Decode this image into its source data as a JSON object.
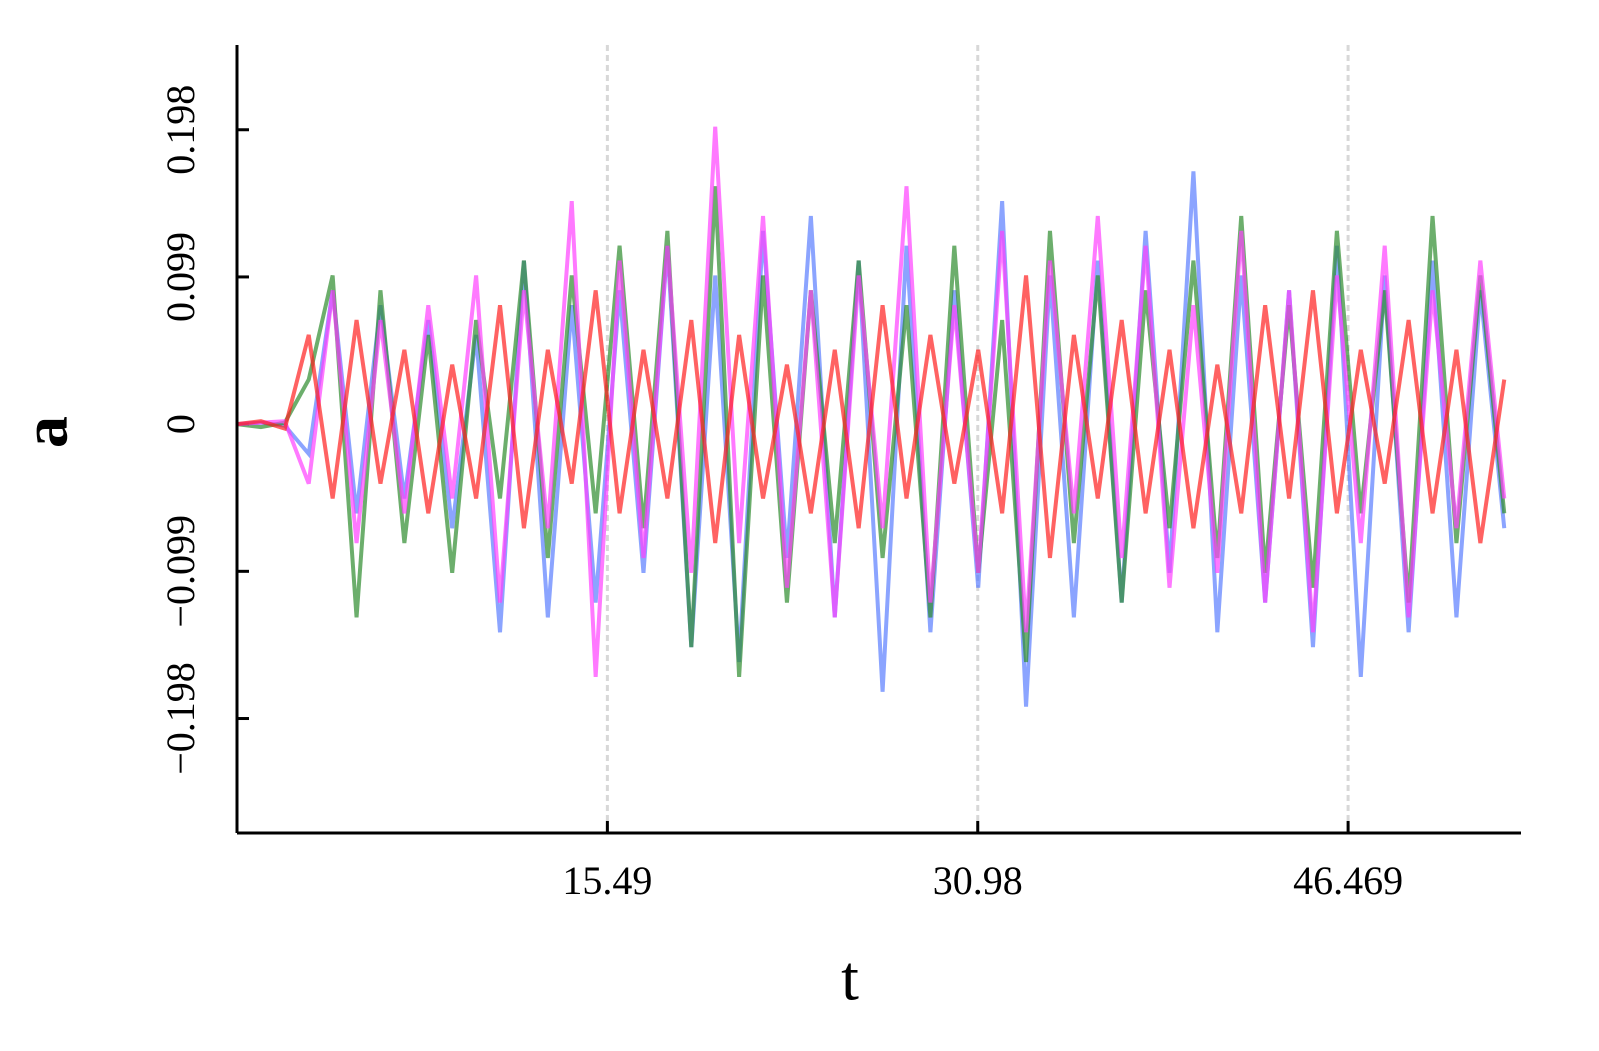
{
  "chart_data": {
    "type": "line",
    "x_label": "t",
    "y_label": "a",
    "x": [
      0,
      1,
      2,
      3,
      4,
      5,
      6,
      7,
      8,
      9,
      10,
      11,
      12,
      13,
      14,
      15,
      16,
      17,
      18,
      19,
      20,
      21,
      22,
      23,
      24,
      25,
      26,
      27,
      28,
      29,
      30,
      31,
      32,
      33,
      34,
      35,
      36,
      37,
      38,
      39,
      40,
      41,
      42,
      43,
      44,
      45,
      46,
      47,
      48,
      49,
      50,
      51,
      52,
      53
    ],
    "series": [
      {
        "color": "#5a7dff",
        "values": [
          0,
          0.001,
          -0.001,
          -0.02,
          0.09,
          -0.06,
          0.08,
          -0.05,
          0.07,
          -0.07,
          0.06,
          -0.14,
          0.11,
          -0.13,
          0.08,
          -0.12,
          0.09,
          -0.1,
          0.12,
          -0.15,
          0.1,
          -0.16,
          0.13,
          -0.09,
          0.14,
          -0.13,
          0.11,
          -0.18,
          0.12,
          -0.14,
          0.09,
          -0.11,
          0.15,
          -0.19,
          0.1,
          -0.13,
          0.11,
          -0.12,
          0.13,
          -0.1,
          0.17,
          -0.14,
          0.1,
          -0.12,
          0.09,
          -0.15,
          0.12,
          -0.17,
          0.1,
          -0.14,
          0.11,
          -0.13,
          0.09,
          -0.07
        ]
      },
      {
        "color": "#2e8b2e",
        "values": [
          0,
          -0.002,
          0.001,
          0.03,
          0.1,
          -0.13,
          0.09,
          -0.08,
          0.06,
          -0.1,
          0.07,
          -0.05,
          0.11,
          -0.09,
          0.1,
          -0.06,
          0.12,
          -0.07,
          0.13,
          -0.15,
          0.16,
          -0.17,
          0.1,
          -0.12,
          0.09,
          -0.08,
          0.11,
          -0.09,
          0.08,
          -0.13,
          0.12,
          -0.1,
          0.07,
          -0.16,
          0.13,
          -0.08,
          0.1,
          -0.12,
          0.09,
          -0.07,
          0.11,
          -0.09,
          0.14,
          -0.1,
          0.08,
          -0.11,
          0.13,
          -0.06,
          0.09,
          -0.12,
          0.14,
          -0.08,
          0.1,
          -0.06
        ]
      },
      {
        "color": "#ff40ff",
        "values": [
          0,
          0.001,
          0.002,
          -0.04,
          0.09,
          -0.08,
          0.07,
          -0.06,
          0.08,
          -0.05,
          0.1,
          -0.12,
          0.09,
          -0.07,
          0.15,
          -0.17,
          0.11,
          -0.09,
          0.12,
          -0.1,
          0.2,
          -0.08,
          0.14,
          -0.11,
          0.09,
          -0.13,
          0.1,
          -0.07,
          0.16,
          -0.12,
          0.08,
          -0.1,
          0.13,
          -0.14,
          0.11,
          -0.06,
          0.14,
          -0.09,
          0.12,
          -0.11,
          0.08,
          -0.1,
          0.13,
          -0.12,
          0.09,
          -0.14,
          0.1,
          -0.08,
          0.12,
          -0.13,
          0.09,
          -0.07,
          0.11,
          -0.05
        ]
      },
      {
        "color": "#ff2020",
        "values": [
          0,
          0.002,
          -0.003,
          0.06,
          -0.05,
          0.07,
          -0.04,
          0.05,
          -0.06,
          0.04,
          -0.05,
          0.08,
          -0.07,
          0.05,
          -0.04,
          0.09,
          -0.06,
          0.05,
          -0.05,
          0.07,
          -0.08,
          0.06,
          -0.05,
          0.04,
          -0.06,
          0.05,
          -0.07,
          0.08,
          -0.05,
          0.06,
          -0.04,
          0.05,
          -0.06,
          0.1,
          -0.09,
          0.06,
          -0.05,
          0.07,
          -0.06,
          0.05,
          -0.07,
          0.04,
          -0.06,
          0.08,
          -0.05,
          0.09,
          -0.06,
          0.05,
          -0.04,
          0.07,
          -0.06,
          0.05,
          -0.08,
          0.03
        ]
      }
    ],
    "xlim": [
      0,
      53.7
    ],
    "ylim": [
      -0.275,
      0.255
    ],
    "xticks": [
      15.49,
      30.98,
      46.469
    ],
    "yticks": [
      {
        "value": -0.198,
        "label": "−0.198"
      },
      {
        "value": -0.099,
        "label": "−0.099"
      },
      0,
      0.099,
      0.198
    ],
    "grid": true
  }
}
